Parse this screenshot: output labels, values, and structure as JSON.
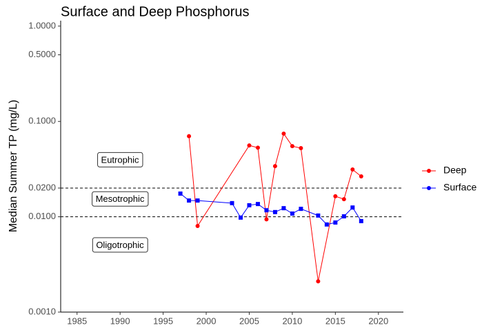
{
  "chart_data": {
    "type": "line",
    "title": "Surface and Deep Phosphorus",
    "y_label": "Median Summer TP (mg/L)",
    "y_scale": "log",
    "grid": false,
    "legend_position": "right",
    "xlim": [
      1983.1,
      2022.9
    ],
    "xticks": [
      1985,
      1990,
      1995,
      2000,
      2005,
      2010,
      2015,
      2020
    ],
    "ylim": [
      0.001,
      1.14
    ],
    "yticks": [
      {
        "value": 0.001,
        "label": "0.0010"
      },
      {
        "value": 0.01,
        "label": "0.0100"
      },
      {
        "value": 0.02,
        "label": "0.0200"
      },
      {
        "value": 0.1,
        "label": "0.1000"
      },
      {
        "value": 0.5,
        "label": "0.5000"
      },
      {
        "value": 1,
        "label": "1.0000"
      }
    ],
    "reference_lines": [
      0.02,
      0.01
    ],
    "annotations": [
      "Eutrophic",
      "Mesotrophic",
      "Oligotrophic"
    ],
    "series": [
      {
        "name": "Deep",
        "color": "#ff0000",
        "marker": "circle",
        "x": [
          1998,
          1999,
          2005,
          2006,
          2007,
          2008,
          2009,
          2010,
          2011,
          2013,
          2015,
          2016,
          2017,
          2018
        ],
        "values": [
          0.07,
          0.008,
          0.056,
          0.053,
          0.0094,
          0.034,
          0.0745,
          0.055,
          0.0525,
          0.0021,
          0.0164,
          0.0153,
          0.0313,
          0.0265
        ]
      },
      {
        "name": "Surface",
        "color": "#0000ff",
        "marker": "square",
        "x": [
          1997,
          1998,
          1999,
          2003,
          2004,
          2005,
          2006,
          2007,
          2008,
          2009,
          2010,
          2011,
          2013,
          2014,
          2015,
          2016,
          2017,
          2018
        ],
        "values": [
          0.0175,
          0.0148,
          0.0148,
          0.0139,
          0.0098,
          0.0132,
          0.0136,
          0.0117,
          0.0112,
          0.0123,
          0.0108,
          0.0121,
          0.0103,
          0.0083,
          0.0087,
          0.0101,
          0.0125,
          0.009
        ]
      }
    ]
  }
}
